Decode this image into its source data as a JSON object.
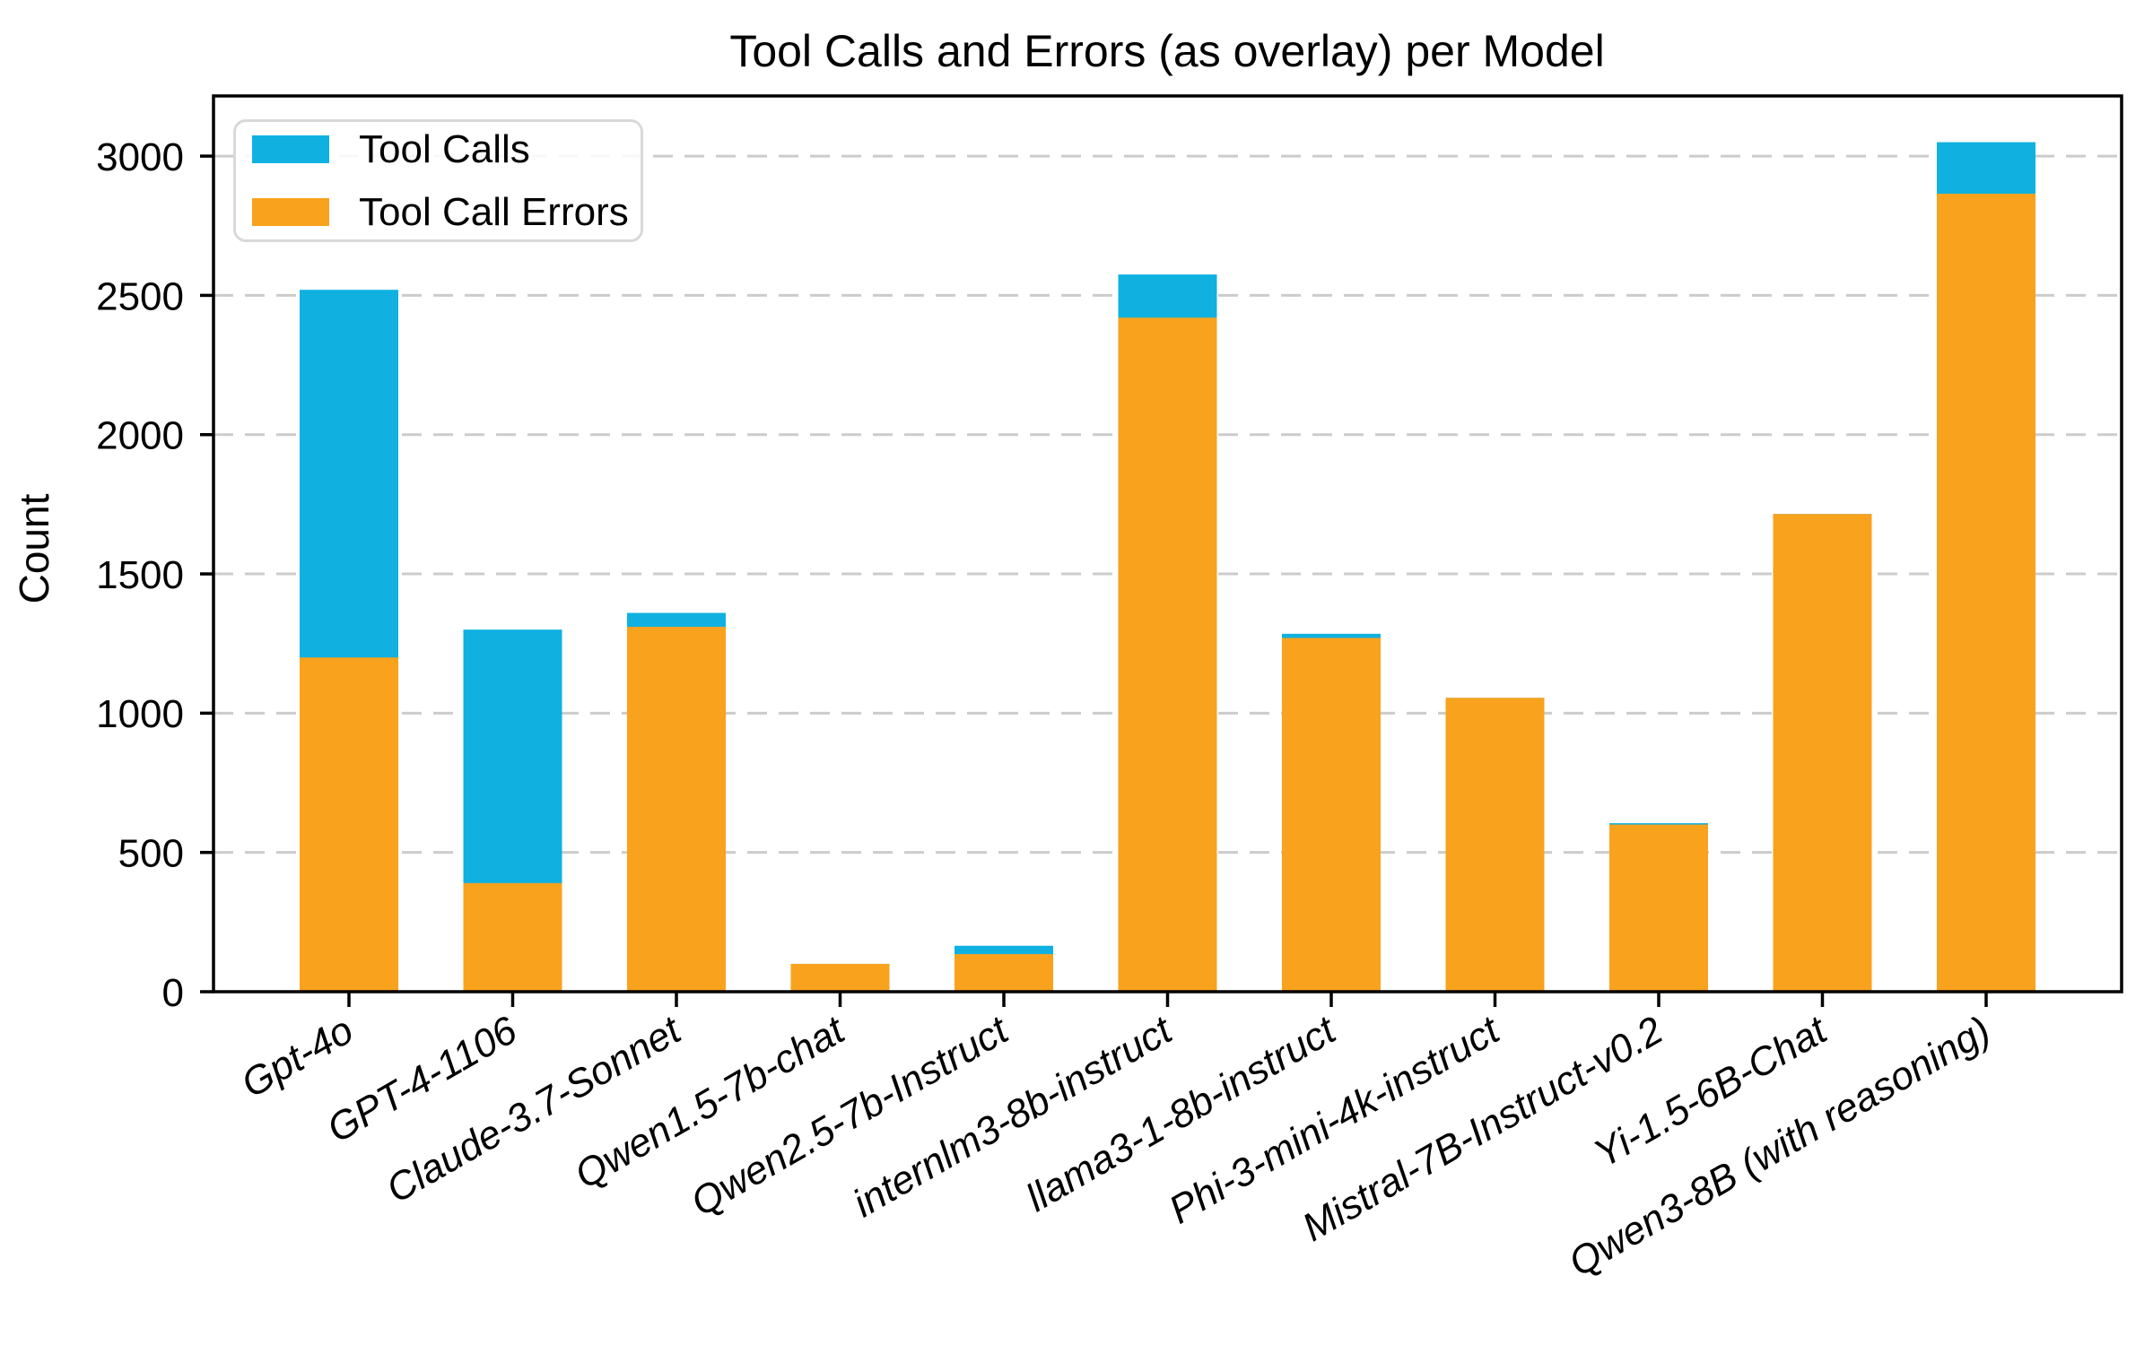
{
  "figure": {
    "title": "Tool Calls and Errors (as overlay) per Model",
    "ylabel": "Count"
  },
  "legend": {
    "items": [
      {
        "label": "Tool Calls",
        "color": "#10b1e1"
      },
      {
        "label": "Tool Call Errors",
        "color": "#f9a21d"
      }
    ]
  },
  "chart_data": {
    "type": "bar",
    "mode": "overlay",
    "title": "Tool Calls and Errors (as overlay) per Model",
    "xlabel": "",
    "ylabel": "Count",
    "categories": [
      "Gpt-4o",
      "GPT-4-1106",
      "Claude-3.7-Sonnet",
      "Qwen1.5-7b-chat",
      "Qwen2.5-7b-Instruct",
      "internlm3-8b-instruct",
      "llama3-1-8b-instruct",
      "Phi-3-mini-4k-instruct",
      "Mistral-7B-Instruct-v0.2",
      "Yi-1.5-6B-Chat",
      "Qwen3-8B (with reasoning)"
    ],
    "series": [
      {
        "name": "Tool Calls",
        "color": "#10b1e1",
        "values": [
          2520,
          1300,
          1360,
          100,
          165,
          2575,
          1285,
          1055,
          605,
          1715,
          3050
        ]
      },
      {
        "name": "Tool Call Errors",
        "color": "#f9a21d",
        "values": [
          1200,
          390,
          1310,
          100,
          135,
          2420,
          1270,
          1055,
          600,
          1715,
          2865
        ]
      }
    ],
    "ylim": [
      0,
      3216
    ],
    "yticks": [
      0,
      500,
      1000,
      1500,
      2000,
      2500,
      3000
    ],
    "grid": {
      "axis": "y",
      "style": "dashed",
      "color": "#cccccc"
    },
    "legend_position": "upper left",
    "xtick_rotation_deg": 30,
    "bar_width_fraction": 0.6
  }
}
